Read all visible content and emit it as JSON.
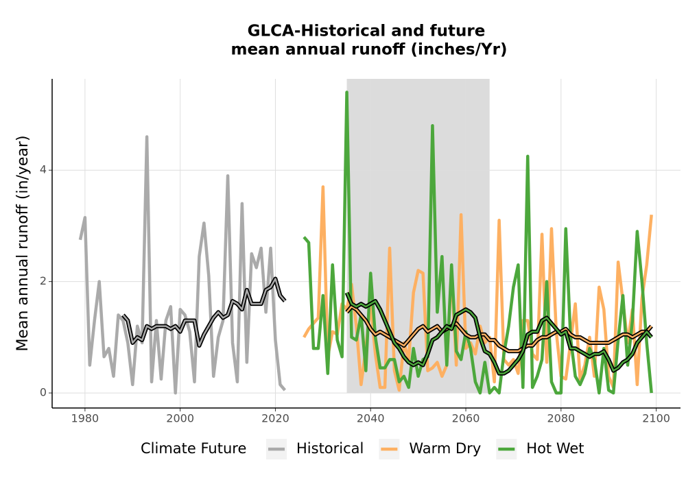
{
  "chart_data": {
    "type": "line",
    "title": [
      "GLCA-Historical and future",
      "mean annual runoff (inches/Yr)"
    ],
    "y_label": "Mean annual runoff (in/year)",
    "legend_title": "Climate Future",
    "legend": "bottom",
    "grid": true,
    "xlim": [
      1973.1,
      2105.1
    ],
    "ylim": [
      -0.27,
      5.64
    ],
    "xticks": [
      1980,
      2000,
      2020,
      2040,
      2060,
      2080,
      2100
    ],
    "yticks": [
      0,
      2,
      4
    ],
    "shade": {
      "x": [
        2035,
        2065
      ],
      "y": [
        0,
        5.64
      ],
      "color": "#dcdcdc"
    },
    "series": [
      {
        "name": "Historical",
        "color": "#aaaaaa",
        "x": [
          1979,
          1980,
          1981,
          1982,
          1983,
          1984,
          1985,
          1986,
          1987,
          1988,
          1989,
          1990,
          1991,
          1992,
          1993,
          1994,
          1995,
          1996,
          1997,
          1998,
          1999,
          2000,
          2001,
          2002,
          2003,
          2004,
          2005,
          2006,
          2007,
          2008,
          2009,
          2010,
          2011,
          2012,
          2013,
          2014,
          2015,
          2016,
          2017,
          2018,
          2019,
          2020,
          2021,
          2022
        ],
        "values": [
          2.75,
          3.15,
          0.5,
          1.3,
          2.0,
          0.65,
          0.8,
          0.3,
          1.4,
          1.3,
          0.9,
          0.15,
          1.2,
          0.9,
          4.6,
          0.2,
          1.3,
          0.25,
          1.3,
          1.55,
          0.0,
          1.5,
          1.4,
          1.1,
          0.2,
          2.45,
          3.05,
          2.1,
          0.3,
          1.0,
          1.3,
          3.9,
          0.9,
          0.2,
          3.4,
          0.55,
          2.5,
          2.25,
          2.6,
          1.45,
          2.6,
          0.95,
          0.15,
          0.05
        ]
      },
      {
        "name": "Warm Dry",
        "color": "#fdb062",
        "x": [
          2026,
          2027,
          2028,
          2029,
          2030,
          2031,
          2032,
          2033,
          2034,
          2035,
          2036,
          2037,
          2038,
          2039,
          2040,
          2041,
          2042,
          2043,
          2044,
          2045,
          2046,
          2047,
          2048,
          2049,
          2050,
          2051,
          2052,
          2053,
          2054,
          2055,
          2056,
          2057,
          2058,
          2059,
          2060,
          2061,
          2062,
          2063,
          2064,
          2065,
          2066,
          2067,
          2068,
          2069,
          2070,
          2071,
          2072,
          2073,
          2074,
          2075,
          2076,
          2077,
          2078,
          2079,
          2080,
          2081,
          2082,
          2083,
          2084,
          2085,
          2086,
          2087,
          2088,
          2089,
          2090,
          2091,
          2092,
          2093,
          2094,
          2095,
          2096,
          2097,
          2098,
          2099
        ],
        "values": [
          1.0,
          1.15,
          1.25,
          1.35,
          3.7,
          0.65,
          1.1,
          1.05,
          1.6,
          1.5,
          1.95,
          1.2,
          0.15,
          0.8,
          1.6,
          0.7,
          0.1,
          0.1,
          2.6,
          0.4,
          0.05,
          0.9,
          0.6,
          1.8,
          2.2,
          2.15,
          0.4,
          0.45,
          0.55,
          0.3,
          0.5,
          2.2,
          0.5,
          3.2,
          0.8,
          0.9,
          0.7,
          1.2,
          0.9,
          1.0,
          0.2,
          3.1,
          0.6,
          0.5,
          0.6,
          0.35,
          1.3,
          1.3,
          0.7,
          0.6,
          2.85,
          0.55,
          2.95,
          1.1,
          0.3,
          0.25,
          0.9,
          1.6,
          0.25,
          0.5,
          1.0,
          0.3,
          1.9,
          1.5,
          0.3,
          0.1,
          2.35,
          1.65,
          0.9,
          1.5,
          0.15,
          1.7,
          2.3,
          3.2
        ]
      },
      {
        "name": "Hot Wet",
        "color": "#4ca73c",
        "x": [
          2026,
          2027,
          2028,
          2029,
          2030,
          2031,
          2032,
          2033,
          2034,
          2035,
          2036,
          2037,
          2038,
          2039,
          2040,
          2041,
          2042,
          2043,
          2044,
          2045,
          2046,
          2047,
          2048,
          2049,
          2050,
          2051,
          2052,
          2053,
          2054,
          2055,
          2056,
          2057,
          2058,
          2059,
          2060,
          2061,
          2062,
          2063,
          2064,
          2065,
          2066,
          2067,
          2068,
          2069,
          2070,
          2071,
          2072,
          2073,
          2074,
          2075,
          2076,
          2077,
          2078,
          2079,
          2080,
          2081,
          2082,
          2083,
          2084,
          2085,
          2086,
          2087,
          2088,
          2089,
          2090,
          2091,
          2092,
          2093,
          2094,
          2095,
          2096,
          2097,
          2098,
          2099
        ],
        "values": [
          2.8,
          2.7,
          0.8,
          0.8,
          1.75,
          0.35,
          2.3,
          0.95,
          0.65,
          5.4,
          1.0,
          0.95,
          1.4,
          0.4,
          2.15,
          1.0,
          0.45,
          0.45,
          0.6,
          0.6,
          0.2,
          0.3,
          0.1,
          0.8,
          0.3,
          0.6,
          0.65,
          4.8,
          1.45,
          2.45,
          0.5,
          2.3,
          0.75,
          0.6,
          1.1,
          0.8,
          0.2,
          0.0,
          0.55,
          0.0,
          0.1,
          0.0,
          0.7,
          1.2,
          1.9,
          2.3,
          0.1,
          4.25,
          0.1,
          0.3,
          0.6,
          2.0,
          0.2,
          0.0,
          0.0,
          2.95,
          1.0,
          0.3,
          0.15,
          0.35,
          0.8,
          0.6,
          0.0,
          0.8,
          0.05,
          0.0,
          0.95,
          1.75,
          0.5,
          1.3,
          2.9,
          2.0,
          0.9,
          0.0
        ]
      }
    ],
    "trends": [
      {
        "color": "#000000",
        "halo": "#aaaaaa",
        "x": [
          1988,
          1989,
          1990,
          1991,
          1992,
          1993,
          1994,
          1995,
          1996,
          1997,
          1998,
          1999,
          2000,
          2001,
          2002,
          2003,
          2004,
          2005,
          2006,
          2007,
          2008,
          2009,
          2010,
          2011,
          2012,
          2013,
          2014,
          2015,
          2016,
          2017,
          2018,
          2019,
          2020,
          2021,
          2022
        ],
        "values": [
          1.4,
          1.3,
          0.9,
          1.0,
          0.95,
          1.2,
          1.15,
          1.2,
          1.2,
          1.2,
          1.15,
          1.2,
          1.1,
          1.3,
          1.3,
          1.3,
          0.85,
          1.05,
          1.2,
          1.35,
          1.45,
          1.35,
          1.4,
          1.65,
          1.6,
          1.5,
          1.85,
          1.6,
          1.6,
          1.6,
          1.85,
          1.9,
          2.05,
          1.75,
          1.65
        ]
      },
      {
        "color": "#000000",
        "halo": "#fdb062",
        "x": [
          2035,
          2036,
          2037,
          2038,
          2039,
          2040,
          2041,
          2042,
          2043,
          2044,
          2045,
          2046,
          2047,
          2048,
          2049,
          2050,
          2051,
          2052,
          2053,
          2054,
          2055,
          2056,
          2057,
          2058,
          2059,
          2060,
          2061,
          2062,
          2063,
          2064,
          2065,
          2066,
          2067,
          2068,
          2069,
          2070,
          2071,
          2072,
          2073,
          2074,
          2075,
          2076,
          2077,
          2078,
          2079,
          2080,
          2081,
          2082,
          2083,
          2084,
          2085,
          2086,
          2087,
          2088,
          2089,
          2090,
          2091,
          2092,
          2093,
          2094,
          2095,
          2096,
          2097,
          2098,
          2099
        ],
        "values": [
          1.45,
          1.55,
          1.5,
          1.4,
          1.3,
          1.15,
          1.05,
          1.1,
          1.05,
          1.0,
          0.95,
          0.9,
          0.85,
          0.95,
          1.05,
          1.15,
          1.2,
          1.1,
          1.15,
          1.2,
          1.1,
          1.15,
          1.2,
          1.25,
          1.15,
          1.05,
          1.0,
          1.0,
          1.05,
          1.05,
          0.95,
          0.95,
          0.85,
          0.8,
          0.75,
          0.75,
          0.75,
          0.8,
          0.85,
          0.85,
          0.95,
          1.0,
          1.0,
          1.05,
          1.1,
          1.1,
          1.15,
          1.05,
          1.0,
          1.0,
          0.95,
          0.9,
          0.9,
          0.9,
          0.9,
          0.9,
          0.95,
          1.0,
          1.05,
          1.05,
          1.0,
          1.05,
          1.1,
          1.1,
          1.2
        ]
      },
      {
        "color": "#000000",
        "halo": "#4ca73c",
        "x": [
          2035,
          2036,
          2037,
          2038,
          2039,
          2040,
          2041,
          2042,
          2043,
          2044,
          2045,
          2046,
          2047,
          2048,
          2049,
          2050,
          2051,
          2052,
          2053,
          2054,
          2055,
          2056,
          2057,
          2058,
          2059,
          2060,
          2061,
          2062,
          2063,
          2064,
          2065,
          2066,
          2067,
          2068,
          2069,
          2070,
          2071,
          2072,
          2073,
          2074,
          2075,
          2076,
          2077,
          2078,
          2079,
          2080,
          2081,
          2082,
          2083,
          2084,
          2085,
          2086,
          2087,
          2088,
          2089,
          2090,
          2091,
          2092,
          2093,
          2094,
          2095,
          2096,
          2097,
          2098,
          2099
        ],
        "values": [
          1.8,
          1.6,
          1.55,
          1.6,
          1.55,
          1.6,
          1.65,
          1.5,
          1.3,
          1.1,
          0.9,
          0.8,
          0.65,
          0.55,
          0.5,
          0.55,
          0.5,
          0.7,
          0.95,
          1.0,
          1.1,
          1.2,
          1.15,
          1.4,
          1.45,
          1.5,
          1.45,
          1.35,
          1.0,
          0.75,
          0.7,
          0.55,
          0.35,
          0.35,
          0.4,
          0.5,
          0.6,
          0.75,
          1.05,
          1.1,
          1.1,
          1.3,
          1.35,
          1.25,
          1.15,
          1.05,
          1.1,
          0.8,
          0.8,
          0.75,
          0.7,
          0.65,
          0.7,
          0.7,
          0.75,
          0.6,
          0.4,
          0.45,
          0.55,
          0.6,
          0.7,
          0.9,
          1.0,
          1.1,
          1.0
        ]
      }
    ]
  }
}
